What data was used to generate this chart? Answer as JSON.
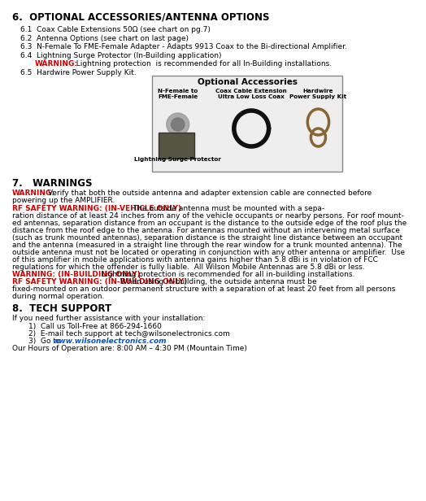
{
  "figsize": [
    5.24,
    6.16
  ],
  "dpi": 100,
  "bg_color": "#ffffff",
  "section6_header": "6.  OPTIONAL ACCESSORIES/ANTENNA OPTIONS",
  "section6_items": [
    "6.1  Coax Cable Extensions 50Ω (see chart on pg.7)",
    "6.2  Antenna Options (see chart on last page)",
    "6.3  N-Female To FME-Female Adapter - Adapts 9913 Coax to the Bi-directional Amplifier.",
    "6.4  Lightning Surge Protector (In-Building application)"
  ],
  "warning_6_4_bold": "WARNING:",
  "warning_6_4_text": "  Lightning protection  is recommended for all In-Building installations.",
  "section6_5": "6.5  Hardwire Power Supply Kit.",
  "box_title": "Optional Accessories",
  "box_label1": "N-Female to\nFME-Female",
  "box_label2": "Coax Cable Extension\nUltra Low Loss Coax",
  "box_label3": "Hardwire\nPower Supply Kit",
  "box_sublabel": "Lightning Surge Protector",
  "section7_header": "7.   WARNINGS",
  "warn7_1_bold": "WARNING:",
  "warn7_1_rest": " Verify that both the outside antenna and adapter extension cable are connected before",
  "warn7_1_line2": "powering up the AMPLIFIER.",
  "warn7_2_bold": "RF SAFETY WARNING: (IN-VEHICLE ONLY)",
  "warn7_2_rest": " The outside antenna must be mounted with a sepa-",
  "warn7_2_lines": [
    "ration distance of at least 24 inches from any of the vehicle occupants or nearby persons. For roof mount-",
    "ed antennas, separation distance from an occupant is the distance to the outside edge of the roof plus the",
    "distance from the roof edge to the antenna. For antennas mounted without an intervening metal surface",
    "(such as trunk mounted antennas), separation distance is the straight line distance between an occupant",
    "and the antenna (measured in a straight line through the rear window for a trunk mounted antenna). The",
    "outside antenna must not be located or operating in conjunction with any other antenna or amplifier.  Use",
    "of this amplifier in mobile applications with antenna gains higher than 5.8 dBi is in violation of FCC",
    "regulations for which the offender is fully liable.  All Wilson Mobile Antennas are 5.8 dBi or less."
  ],
  "warn7_3_bold": "WARNING: (IN-BUILDING ONLY)",
  "warn7_3_text": " Lightning protection is recommended for all in-building installations.",
  "warn7_4_bold": "RF SAFETY WARNING: (IN-BUILDING ONLY)",
  "warn7_4_rest": " When using in-building, the outside antenna must be",
  "warn7_4_lines": [
    "fixed-mounted on an outdoor permanent structure with a separation of at least 20 feet from all persons",
    "during normal operation."
  ],
  "section8_header": "8.  TECH SUPPORT",
  "section8_intro": "If you need further assistance with your installation:",
  "section8_item1": "1)  Call us Toll-Free at 866-294-1660",
  "section8_item2": "2)  E-mail tech support at tech@wilsonelectronics.com",
  "section8_item3_pre": "3)  Go to ",
  "section8_link": "www.wilsonelectronics.com",
  "section8_hours": "Our Hours of Operation are: 8:00 AM – 4:30 PM (Mountain Time)",
  "color_red": "#cc0000",
  "color_blue": "#0055cc",
  "color_black": "#000000",
  "font_size_header": 8.5,
  "font_size_body": 6.5,
  "font_size_box_title": 7.5,
  "font_size_box_label": 5.2
}
